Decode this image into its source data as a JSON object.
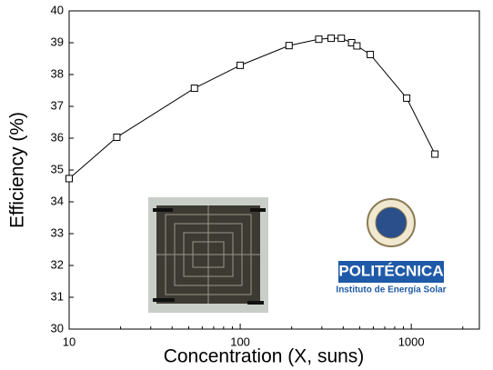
{
  "chart_data": {
    "type": "line",
    "x_label": "Concentration (X, suns)",
    "y_label": "Efficiency (%)",
    "x": [
      10,
      19,
      54,
      100,
      193,
      288,
      340,
      390,
      448,
      481,
      576,
      940,
      1375
    ],
    "series": [
      {
        "color": "#000000",
        "values": [
          34.73,
          36.03,
          37.57,
          38.29,
          38.91,
          39.11,
          39.14,
          39.14,
          39.0,
          38.9,
          38.63,
          37.26,
          35.5
        ]
      }
    ],
    "xscale": "log",
    "xlim": [
      10,
      2500
    ],
    "xticks": [
      10,
      100,
      1000
    ],
    "ylim": [
      30,
      40
    ],
    "yticks": [
      30,
      31,
      32,
      33,
      34,
      35,
      36,
      37,
      38,
      39,
      40
    ],
    "annotations": [
      "POLITÉCNICA",
      "Instituto de Energía Solar"
    ]
  }
}
